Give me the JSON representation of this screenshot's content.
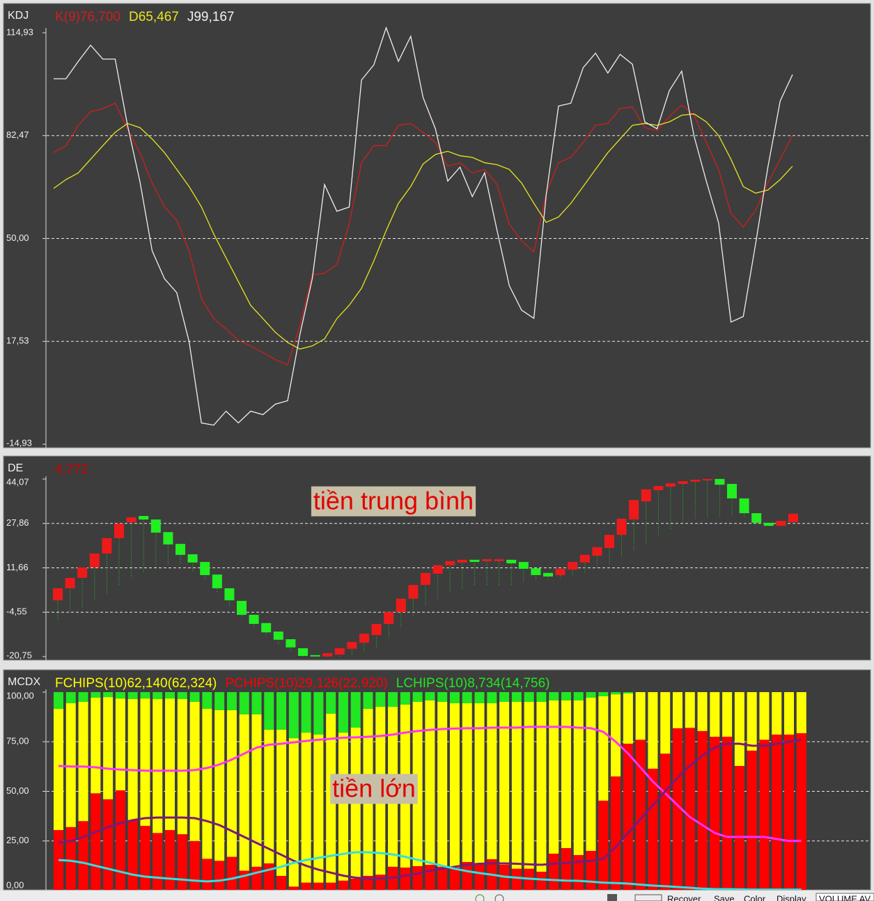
{
  "chart_data": [
    {
      "type": "line",
      "title": "KDJ",
      "ylim": [
        -14.93,
        114.93
      ],
      "yticks": [
        {
          "value": -14.93,
          "label": "-14,93"
        },
        {
          "value": 17.53,
          "label": "17,53"
        },
        {
          "value": 50,
          "label": "50,00"
        },
        {
          "value": 82.47,
          "label": "82,47"
        },
        {
          "value": 114.93,
          "label": "114,93"
        }
      ],
      "grid": true,
      "series": [
        {
          "name": "K(9)76,700",
          "color": "#d01e1e",
          "values": [
            77.1,
            79.3,
            85.7,
            90.0,
            91.0,
            92.7,
            84.6,
            77.1,
            67.5,
            60.0,
            55.7,
            46.1,
            31.1,
            24.7,
            21.5,
            17.8,
            16.1,
            14.0,
            11.8,
            10.1,
            22.5,
            38.6,
            39.0,
            41.8,
            54.6,
            73.9,
            79.3,
            79.3,
            85.7,
            86.3,
            83.5,
            80.3,
            72.8,
            73.9,
            70.7,
            71.8,
            67.1,
            54.6,
            49.3,
            45.7,
            64.3,
            73.9,
            75.6,
            80.3,
            85.7,
            86.3,
            91.0,
            91.5,
            85.0,
            84.0,
            88.5,
            92.1,
            88.9,
            80.3,
            71.8,
            57.9,
            53.6,
            58.9,
            67.5,
            75.0,
            82.5
          ]
        },
        {
          "name": "D65,467",
          "color": "#e6e61e",
          "values": [
            65.8,
            68.6,
            70.7,
            75.0,
            79.3,
            83.5,
            86.3,
            85.0,
            81.4,
            77.1,
            71.8,
            66.4,
            60.0,
            51.4,
            43.9,
            36.4,
            28.9,
            24.7,
            20.4,
            17.2,
            15.1,
            16.1,
            18.3,
            24.7,
            28.9,
            34.3,
            42.9,
            52.5,
            61.1,
            66.4,
            73.5,
            76.5,
            77.5,
            76.1,
            75.6,
            73.9,
            73.3,
            71.8,
            67.5,
            61.1,
            55.1,
            56.8,
            61.1,
            66.4,
            71.8,
            77.1,
            81.4,
            85.7,
            86.3,
            85.7,
            86.8,
            88.9,
            89.3,
            86.8,
            82.5,
            75.0,
            66.4,
            64.3,
            65.3,
            68.6,
            72.8
          ]
        },
        {
          "name": "J99,167",
          "color": "#f0f0f0",
          "values": [
            100.4,
            100.4,
            105.9,
            111.0,
            106.6,
            106.6,
            85.7,
            68.1,
            46.1,
            37.3,
            32.9,
            17.5,
            -8.2,
            -8.9,
            -4.5,
            -8.2,
            -4.5,
            -5.6,
            -2.3,
            -1.2,
            19.7,
            37.3,
            67.0,
            58.6,
            59.9,
            100.0,
            104.8,
            116.5,
            105.9,
            113.8,
            94.5,
            84.6,
            68.1,
            72.5,
            63.2,
            70.7,
            52.7,
            35.1,
            27.4,
            24.8,
            63.7,
            91.8,
            92.7,
            103.9,
            108.5,
            102.2,
            108.1,
            105.0,
            86.8,
            84.6,
            96.7,
            102.8,
            82.4,
            68.1,
            54.9,
            23.6,
            25.4,
            48.3,
            72.5,
            93.4,
            101.7
          ]
        }
      ]
    },
    {
      "type": "candlestick",
      "title": "DE",
      "subtitle": "4,772",
      "subtitle_color": "#d00000",
      "ylim": [
        -20.75,
        44.07
      ],
      "yticks": [
        {
          "value": -20.75,
          "label": "-20,75"
        },
        {
          "value": -4.55,
          "label": "-4,55"
        },
        {
          "value": 11.66,
          "label": "11,66"
        },
        {
          "value": 27.86,
          "label": "27,86"
        },
        {
          "value": 44.07,
          "label": "44,07"
        }
      ],
      "grid": true,
      "up_color": "#ee1a1a",
      "down_color": "#22ee22",
      "wick_color": "#22c822",
      "annotation": "tiền trung bình",
      "open": [
        -0.2,
        4.2,
        8.0,
        11.8,
        16.9,
        22.5,
        28.3,
        30.6,
        29.3,
        24.7,
        20.4,
        16.6,
        13.8,
        9.2,
        4.2,
        -0.4,
        -5.5,
        -8.5,
        -11.6,
        -14.4,
        -17.7,
        -20.2,
        -20.7,
        -20.0,
        -17.9,
        -15.7,
        -12.9,
        -8.8,
        -4.5,
        0.4,
        5.4,
        9.5,
        12.6,
        13.6,
        14.6,
        14.1,
        14.1,
        14.6,
        13.8,
        11.5,
        9.8,
        9.0,
        11.0,
        13.6,
        16.1,
        18.9,
        23.7,
        29.3,
        35.9,
        40.0,
        41.3,
        42.3,
        43.1,
        43.6,
        44.1,
        42.3,
        37.0,
        31.6,
        28.1,
        27.0,
        28.3
      ],
      "close": [
        4.2,
        8.0,
        11.8,
        16.9,
        22.5,
        27.8,
        30.1,
        29.3,
        24.5,
        20.2,
        16.4,
        13.6,
        9.0,
        4.2,
        -0.2,
        -5.5,
        -8.8,
        -11.9,
        -14.6,
        -17.4,
        -20.5,
        -20.7,
        -19.5,
        -17.7,
        -15.4,
        -12.4,
        -8.8,
        -4.5,
        0.4,
        5.4,
        9.8,
        12.6,
        14.1,
        14.6,
        13.8,
        14.8,
        14.8,
        13.3,
        11.3,
        9.0,
        8.5,
        11.3,
        13.8,
        16.4,
        19.2,
        23.7,
        29.6,
        36.4,
        40.3,
        41.5,
        42.5,
        43.3,
        43.8,
        44.1,
        42.0,
        37.0,
        31.6,
        28.1,
        27.0,
        28.8,
        31.4
      ],
      "low": [
        -7.3,
        -4.7,
        -2.7,
        -0.2,
        2.4,
        5.4,
        8.0,
        10.0,
        11.8,
        13.1,
        13.1,
        10.5,
        7.5,
        2.9,
        -2.2,
        -6.0,
        -9.8,
        -12.9,
        -16.2,
        -18.7,
        -20.7,
        -20.7,
        -20.7,
        -20.7,
        -20.0,
        -18.7,
        -17.4,
        -13.6,
        -9.8,
        -6.0,
        -2.2,
        0.4,
        2.9,
        4.2,
        5.4,
        5.4,
        5.4,
        5.4,
        6.7,
        7.5,
        7.5,
        8.0,
        9.0,
        10.0,
        11.8,
        13.1,
        15.6,
        18.1,
        20.7,
        23.2,
        25.8,
        28.3,
        29.6,
        30.3,
        30.3,
        30.8,
        30.3,
        27.8,
        27.0,
        27.0,
        27.8
      ]
    },
    {
      "type": "stacked_bar",
      "title": "MCDX",
      "ylim": [
        0,
        100
      ],
      "yticks": [
        {
          "value": 0,
          "label": "0,00"
        },
        {
          "value": 25,
          "label": "25,00"
        },
        {
          "value": 50,
          "label": "50,00"
        },
        {
          "value": 75,
          "label": "75,00"
        },
        {
          "value": 100,
          "label": "100,00"
        }
      ],
      "grid": true,
      "annotation": "tiền lớn",
      "stack_order": [
        1,
        0,
        2
      ],
      "series": [
        {
          "name": "FCHIPS(10)62,140(62,324)",
          "color": "#ffff00",
          "values": [
            61.1,
            62.4,
            60.1,
            48.2,
            51.5,
            46.3,
            61.0,
            64.2,
            67.5,
            66.3,
            68.1,
            70.1,
            75.6,
            75.9,
            73.9,
            78.8,
            76.8,
            67.4,
            73.7,
            74.8,
            75.6,
            74.6,
            85.1,
            74.6,
            76.1,
            84.2,
            84.6,
            80.6,
            82.1,
            82.8,
            82.8,
            83.1,
            82.8,
            80.0,
            80.7,
            78.6,
            82.1,
            84.1,
            84.1,
            85.6,
            77.2,
            74.4,
            77.9,
            77.2,
            52.6,
            41.4,
            25.3,
            24,
            38.6,
            31,
            18.2,
            18,
            19.6,
            22.5,
            22.5,
            37.2,
            29.5,
            24,
            21.4,
            21.4,
            20.7
          ]
        },
        {
          "name": "PCHIPS(10)29,126(22,920)",
          "color": "#ff0000",
          "values": [
            30.5,
            32,
            35,
            49,
            46,
            50.5,
            35.5,
            32.6,
            29,
            30.5,
            28.4,
            25,
            16,
            15,
            17,
            10,
            12,
            13.7,
            7.4,
            2,
            4,
            4,
            4,
            5,
            6,
            7.4,
            8,
            12,
            11.6,
            12.3,
            13,
            12,
            11.6,
            14.4,
            13.7,
            15.8,
            13,
            11,
            11,
            9.5,
            18.6,
            21.4,
            17.9,
            20,
            45.3,
            57.5,
            74,
            76,
            61.4,
            69,
            81.8,
            82,
            80.4,
            77.5,
            77.5,
            62.8,
            70.5,
            76,
            78.6,
            78.6,
            79.3
          ]
        },
        {
          "name": "LCHIPS(10)8,734(14,756)",
          "color": "#22e622",
          "values": [
            8.4,
            5.6,
            4.9,
            2.8,
            2.5,
            3.2,
            3.5,
            3.2,
            3.5,
            3.2,
            3.5,
            4.9,
            8.4,
            9.1,
            9.1,
            11.2,
            11.2,
            18.9,
            18.9,
            23.2,
            20.4,
            21.4,
            10.9,
            20.4,
            17.9,
            8.4,
            7.4,
            7.4,
            6.3,
            4.9,
            4.2,
            4.9,
            5.6,
            5.6,
            5.6,
            5.6,
            4.9,
            4.9,
            4.9,
            4.9,
            4.2,
            4.2,
            4.2,
            2.8,
            2.1,
            1.1,
            0.7,
            0,
            0,
            0,
            0,
            0,
            0,
            0,
            0,
            0,
            0,
            0,
            0,
            0,
            0
          ]
        }
      ],
      "lines": [
        {
          "color": "#ff33ff",
          "values": [
            62.8,
            62.5,
            62.5,
            62.1,
            61.4,
            61,
            60.7,
            60.4,
            60.4,
            60.4,
            60.4,
            60.7,
            61.8,
            63.5,
            66,
            69,
            72,
            73.5,
            74,
            74.7,
            75.4,
            76,
            76.5,
            77,
            77.2,
            77.5,
            77.9,
            78.6,
            79.6,
            80.4,
            81,
            81.4,
            81.6,
            81.8,
            81.8,
            82.1,
            82.1,
            82.1,
            82.5,
            82.5,
            82.5,
            82.5,
            82.1,
            81.8,
            80,
            75,
            69,
            62,
            55,
            49,
            43,
            37,
            33,
            29,
            27,
            27,
            27,
            27,
            26,
            25,
            25
          ]
        },
        {
          "color": "#7a1a7a",
          "values": [
            24.2,
            25,
            27,
            29.5,
            32,
            34,
            35.5,
            36.5,
            36.8,
            36.8,
            36.8,
            36.5,
            35,
            33,
            30,
            27,
            24,
            21,
            18,
            15,
            12.5,
            10.5,
            9,
            7.5,
            6.5,
            6,
            6,
            6.5,
            7.5,
            8.5,
            10,
            11,
            12,
            13,
            13.5,
            13.7,
            13.7,
            13.5,
            13.2,
            13,
            13.5,
            14,
            14.5,
            15,
            16,
            22,
            29,
            36,
            43,
            50,
            57,
            63,
            68,
            72,
            74,
            74,
            73,
            73,
            74,
            75,
            76
          ]
        },
        {
          "color": "#33e0e0",
          "values": [
            15.4,
            15,
            14,
            12.5,
            11,
            9.5,
            8,
            7,
            6.5,
            6,
            5.5,
            5,
            4.6,
            5,
            6,
            7.4,
            9,
            10.5,
            12,
            14,
            15.4,
            16.5,
            17.5,
            18.5,
            19.3,
            19.3,
            18.9,
            18.2,
            17,
            15.5,
            14,
            12.5,
            11,
            9.8,
            8.8,
            8,
            7,
            6.5,
            6,
            5.6,
            5.3,
            5,
            4.9,
            4.5,
            4,
            3.8,
            3.5,
            3,
            2.5,
            2.2,
            1.8,
            1.4,
            1,
            0.7,
            0.7,
            0.6,
            0.5,
            0.5,
            0.5,
            0.5,
            0.5
          ]
        }
      ]
    }
  ],
  "toolbar": {
    "buttons": [
      "Recover",
      "Save",
      "Color",
      "Display"
    ],
    "tab": "VOLUME AV"
  }
}
